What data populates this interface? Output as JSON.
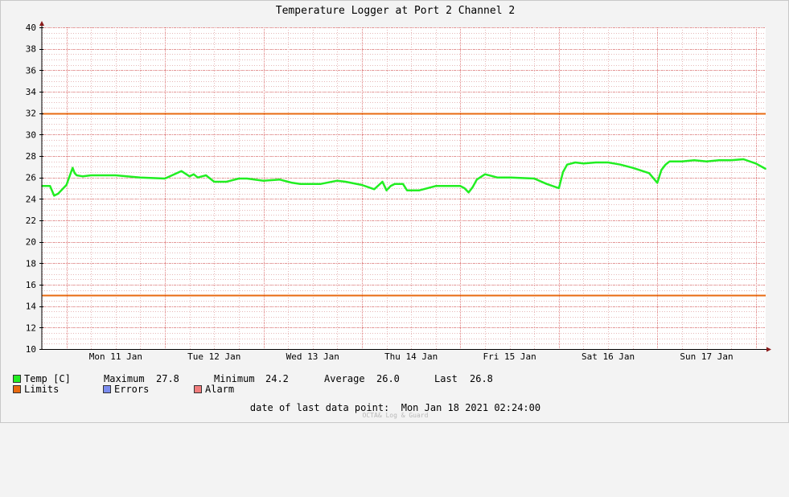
{
  "title": "Temperature Logger at Port 2 Channel 2",
  "chart_data": {
    "type": "line",
    "title": "Temperature Logger at Port 2 Channel 2",
    "ylim": [
      10,
      40
    ],
    "y_ticks": [
      10,
      12,
      14,
      16,
      18,
      20,
      22,
      24,
      26,
      28,
      30,
      32,
      34,
      36,
      38,
      40
    ],
    "x_range": [
      "2021-01-10 18:00",
      "2021-01-18 02:24"
    ],
    "x_tick_labels": [
      "Mon 11 Jan",
      "Tue 12 Jan",
      "Wed 13 Jan",
      "Thu 14 Jan",
      "Fri 15 Jan",
      "Sat 16 Jan",
      "Sun 17 Jan"
    ],
    "grid": true,
    "limits": [
      {
        "name": "upper",
        "value": 32.0
      },
      {
        "name": "lower",
        "value": 15.0
      }
    ],
    "series": [
      {
        "name": "Temp [C]",
        "x": [
          "2021-01-10 18:00",
          "2021-01-10 20:00",
          "2021-01-10 21:00",
          "2021-01-10 22:00",
          "2021-01-11 00:00",
          "2021-01-11 01:30",
          "2021-01-11 02:00",
          "2021-01-11 02:30",
          "2021-01-11 04:00",
          "2021-01-11 06:00",
          "2021-01-11 12:00",
          "2021-01-11 18:00",
          "2021-01-12 00:00",
          "2021-01-12 04:00",
          "2021-01-12 06:00",
          "2021-01-12 07:00",
          "2021-01-12 08:00",
          "2021-01-12 10:00",
          "2021-01-12 12:00",
          "2021-01-12 14:00",
          "2021-01-12 15:00",
          "2021-01-12 16:00",
          "2021-01-12 18:00",
          "2021-01-12 20:00",
          "2021-01-13 00:00",
          "2021-01-13 04:00",
          "2021-01-13 06:00",
          "2021-01-13 07:00",
          "2021-01-13 09:00",
          "2021-01-13 12:00",
          "2021-01-13 14:00",
          "2021-01-13 18:00",
          "2021-01-13 20:00",
          "2021-01-14 00:00",
          "2021-01-14 03:00",
          "2021-01-14 05:00",
          "2021-01-14 06:00",
          "2021-01-14 07:00",
          "2021-01-14 08:00",
          "2021-01-14 10:00",
          "2021-01-14 11:00",
          "2021-01-14 12:00",
          "2021-01-14 14:00",
          "2021-01-14 18:00",
          "2021-01-14 20:00",
          "2021-01-15 00:00",
          "2021-01-15 01:00",
          "2021-01-15 02:00",
          "2021-01-15 03:00",
          "2021-01-15 04:00",
          "2021-01-15 06:00",
          "2021-01-15 08:00",
          "2021-01-15 09:00",
          "2021-01-15 12:00",
          "2021-01-15 18:00",
          "2021-01-15 21:00",
          "2021-01-16 00:00",
          "2021-01-16 01:00",
          "2021-01-16 02:00",
          "2021-01-16 04:00",
          "2021-01-16 06:00",
          "2021-01-16 09:00",
          "2021-01-16 12:00",
          "2021-01-16 15:00",
          "2021-01-16 18:00",
          "2021-01-16 22:00",
          "2021-01-17 00:00",
          "2021-01-17 01:00",
          "2021-01-17 02:00",
          "2021-01-17 03:00",
          "2021-01-17 06:00",
          "2021-01-17 09:00",
          "2021-01-17 12:00",
          "2021-01-17 15:00",
          "2021-01-17 18:00",
          "2021-01-17 21:00",
          "2021-01-18 00:00",
          "2021-01-18 02:24"
        ],
        "values": [
          25.2,
          25.2,
          24.3,
          24.5,
          25.3,
          26.9,
          26.4,
          26.2,
          26.1,
          26.2,
          26.2,
          26.0,
          25.9,
          26.6,
          26.1,
          26.3,
          26.0,
          26.2,
          25.6,
          25.6,
          25.6,
          25.7,
          25.9,
          25.9,
          25.7,
          25.8,
          25.6,
          25.5,
          25.4,
          25.4,
          25.4,
          25.7,
          25.6,
          25.3,
          24.9,
          25.6,
          24.8,
          25.2,
          25.4,
          25.4,
          24.8,
          24.8,
          24.8,
          25.2,
          25.2,
          25.2,
          25.0,
          24.6,
          25.1,
          25.8,
          26.3,
          26.1,
          26.0,
          26.0,
          25.9,
          25.4,
          25.0,
          26.5,
          27.2,
          27.4,
          27.3,
          27.4,
          27.4,
          27.2,
          26.9,
          26.4,
          25.5,
          26.7,
          27.2,
          27.5,
          27.5,
          27.6,
          27.5,
          27.6,
          27.6,
          27.7,
          27.3,
          26.8
        ]
      }
    ]
  },
  "legend": {
    "temp_label": "Temp [C]",
    "maximum_label": "Maximum",
    "maximum_value": "27.8",
    "minimum_label": "Minimum",
    "minimum_value": "24.2",
    "average_label": "Average",
    "average_value": "26.0",
    "last_label": "Last",
    "last_value": "26.8",
    "limits_label": "Limits",
    "errors_label": "Errors",
    "alarm_label": "Alarm"
  },
  "colors": {
    "temp": "#22ee22",
    "limits": "#e86a10",
    "errors": "#7b8cee",
    "alarm": "#f07c7c",
    "grid_minor": "#e6b8b8",
    "grid_major": "#e08080",
    "plot_bg": "#ffffff"
  },
  "footer": {
    "date_label": "date of last data point:",
    "date_value": "Mon Jan 18 2021 02:24:00",
    "watermark": "OCTA& Log & Guard"
  }
}
